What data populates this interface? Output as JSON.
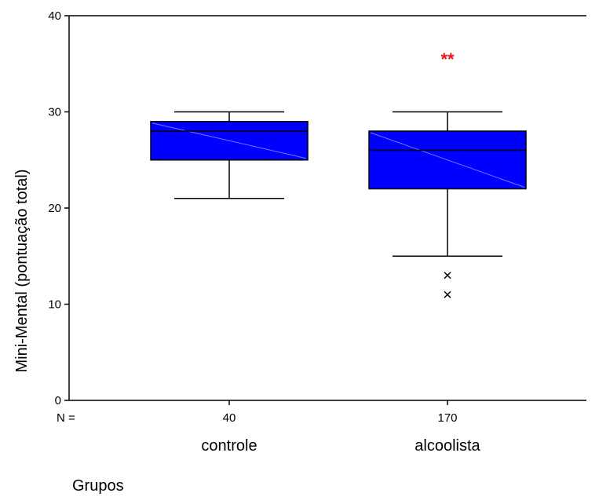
{
  "chart_data": {
    "type": "boxplot",
    "ylabel": "Mini-Mental (pontuação total)",
    "xlabel": "Grupos",
    "ylim": [
      0,
      40
    ],
    "yticks": [
      0,
      10,
      20,
      30,
      40
    ],
    "n_prefix": "N =",
    "box_color": "#0000ff",
    "significance_color": "#e8141b",
    "groups": [
      {
        "label": "controle",
        "n": "40",
        "whisker_low": 21,
        "q1": 25,
        "median": 28,
        "q3": 29,
        "whisker_high": 30,
        "outliers": [],
        "annotation": ""
      },
      {
        "label": "alcoolista",
        "n": "170",
        "whisker_low": 15,
        "q1": 22,
        "median": 26,
        "q3": 28,
        "whisker_high": 30,
        "outliers": [
          13,
          11
        ],
        "annotation": "**",
        "annotation_y": 35.5
      }
    ]
  }
}
